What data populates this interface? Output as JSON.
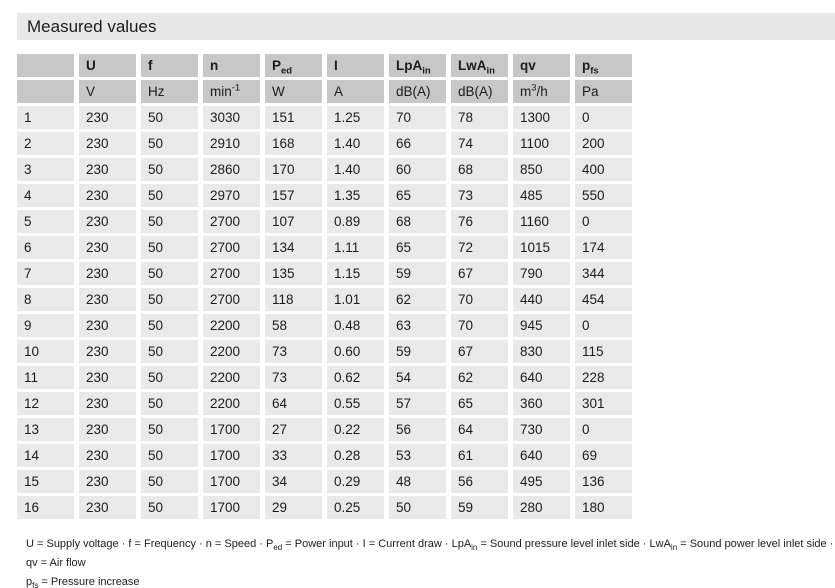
{
  "page": {
    "title": "Measured values"
  },
  "colors": {
    "band_bg": "#e8e8e8",
    "header_bg": "#c7c7c7",
    "row_bg": "#e9e9e9",
    "text": "#1c1c1c"
  },
  "table": {
    "columns": [
      {
        "label": "",
        "sub": "",
        "unit": "",
        "unit_sup": "",
        "unit_post": ""
      },
      {
        "label": "U",
        "sub": "",
        "unit": "V",
        "unit_sup": "",
        "unit_post": ""
      },
      {
        "label": "f",
        "sub": "",
        "unit": "Hz",
        "unit_sup": "",
        "unit_post": ""
      },
      {
        "label": "n",
        "sub": "",
        "unit": "min",
        "unit_sup": "-1",
        "unit_post": ""
      },
      {
        "label": "P",
        "sub": "ed",
        "unit": "W",
        "unit_sup": "",
        "unit_post": ""
      },
      {
        "label": "I",
        "sub": "",
        "unit": "A",
        "unit_sup": "",
        "unit_post": ""
      },
      {
        "label": "LpA",
        "sub": "in",
        "unit": "dB(A)",
        "unit_sup": "",
        "unit_post": ""
      },
      {
        "label": "LwA",
        "sub": "in",
        "unit": "dB(A)",
        "unit_sup": "",
        "unit_post": ""
      },
      {
        "label": "qv",
        "sub": "",
        "unit": "m",
        "unit_sup": "3",
        "unit_post": "/h"
      },
      {
        "label": "p",
        "sub": "fs",
        "unit": "Pa",
        "unit_sup": "",
        "unit_post": ""
      }
    ],
    "rows": [
      [
        "1",
        "230",
        "50",
        "3030",
        "151",
        "1.25",
        "70",
        "78",
        "1300",
        "0"
      ],
      [
        "2",
        "230",
        "50",
        "2910",
        "168",
        "1.40",
        "66",
        "74",
        "1100",
        "200"
      ],
      [
        "3",
        "230",
        "50",
        "2860",
        "170",
        "1.40",
        "60",
        "68",
        "850",
        "400"
      ],
      [
        "4",
        "230",
        "50",
        "2970",
        "157",
        "1.35",
        "65",
        "73",
        "485",
        "550"
      ],
      [
        "5",
        "230",
        "50",
        "2700",
        "107",
        "0.89",
        "68",
        "76",
        "1160",
        "0"
      ],
      [
        "6",
        "230",
        "50",
        "2700",
        "134",
        "1.11",
        "65",
        "72",
        "1015",
        "174"
      ],
      [
        "7",
        "230",
        "50",
        "2700",
        "135",
        "1.15",
        "59",
        "67",
        "790",
        "344"
      ],
      [
        "8",
        "230",
        "50",
        "2700",
        "118",
        "1.01",
        "62",
        "70",
        "440",
        "454"
      ],
      [
        "9",
        "230",
        "50",
        "2200",
        "58",
        "0.48",
        "63",
        "70",
        "945",
        "0"
      ],
      [
        "10",
        "230",
        "50",
        "2200",
        "73",
        "0.60",
        "59",
        "67",
        "830",
        "115"
      ],
      [
        "11",
        "230",
        "50",
        "2200",
        "73",
        "0.62",
        "54",
        "62",
        "640",
        "228"
      ],
      [
        "12",
        "230",
        "50",
        "2200",
        "64",
        "0.55",
        "57",
        "65",
        "360",
        "301"
      ],
      [
        "13",
        "230",
        "50",
        "1700",
        "27",
        "0.22",
        "56",
        "64",
        "730",
        "0"
      ],
      [
        "14",
        "230",
        "50",
        "1700",
        "33",
        "0.28",
        "53",
        "61",
        "640",
        "69"
      ],
      [
        "15",
        "230",
        "50",
        "1700",
        "34",
        "0.29",
        "48",
        "56",
        "495",
        "136"
      ],
      [
        "16",
        "230",
        "50",
        "1700",
        "29",
        "0.25",
        "50",
        "59",
        "280",
        "180"
      ]
    ]
  },
  "footnote": {
    "line1": [
      {
        "t": "U = Supply voltage · f = Frequency · n = Speed · P"
      },
      {
        "sub": "ed"
      },
      {
        "t": " = Power input · I = Current draw · LpA"
      },
      {
        "sub": "in"
      },
      {
        "t": " = Sound pressure level inlet side · LwA"
      },
      {
        "sub": "in"
      },
      {
        "t": " = Sound power level inlet side · qv = Air flow"
      }
    ],
    "line2": [
      {
        "t": "p"
      },
      {
        "sub": "fs"
      },
      {
        "t": " = Pressure increase"
      }
    ]
  }
}
